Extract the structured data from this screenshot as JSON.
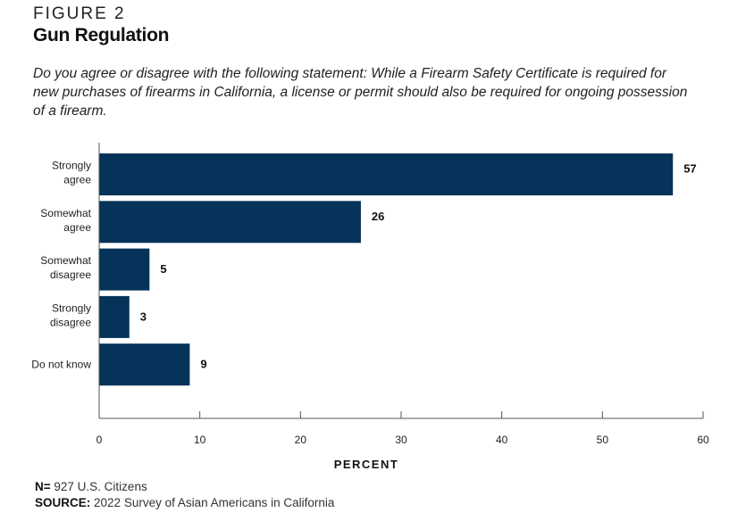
{
  "figure_label": "FIGURE 2",
  "title": "Gun Regulation",
  "question": "Do you agree or disagree with the following statement: While a Firearm Safety Certificate is required for new purchases of firearms in California, a license or permit should also be required for ongoing possession of a firearm.",
  "footer": {
    "n_label": "N=",
    "n_value": "927 U.S. Citizens",
    "source_label": "SOURCE:",
    "source_value": "2022 Survey of Asian Americans in California"
  },
  "colors": {
    "bar": "#053359",
    "axis": "#555555"
  },
  "chart_data": {
    "type": "bar",
    "orientation": "horizontal",
    "title": "Gun Regulation",
    "categories": [
      [
        "Strongly",
        "agree"
      ],
      [
        "Somewhat",
        "agree"
      ],
      [
        "Somewhat",
        "disagree"
      ],
      [
        "Strongly",
        "disagree"
      ],
      [
        "Do not know"
      ]
    ],
    "values": [
      57,
      26,
      5,
      3,
      9
    ],
    "data_labels": [
      "57",
      "26",
      "5",
      "3",
      "9"
    ],
    "xlabel": "PERCENT",
    "ylabel": "",
    "xlim": [
      0,
      60
    ],
    "xticks": [
      0,
      10,
      20,
      30,
      40,
      50,
      60
    ],
    "grid": false,
    "legend": "none"
  }
}
